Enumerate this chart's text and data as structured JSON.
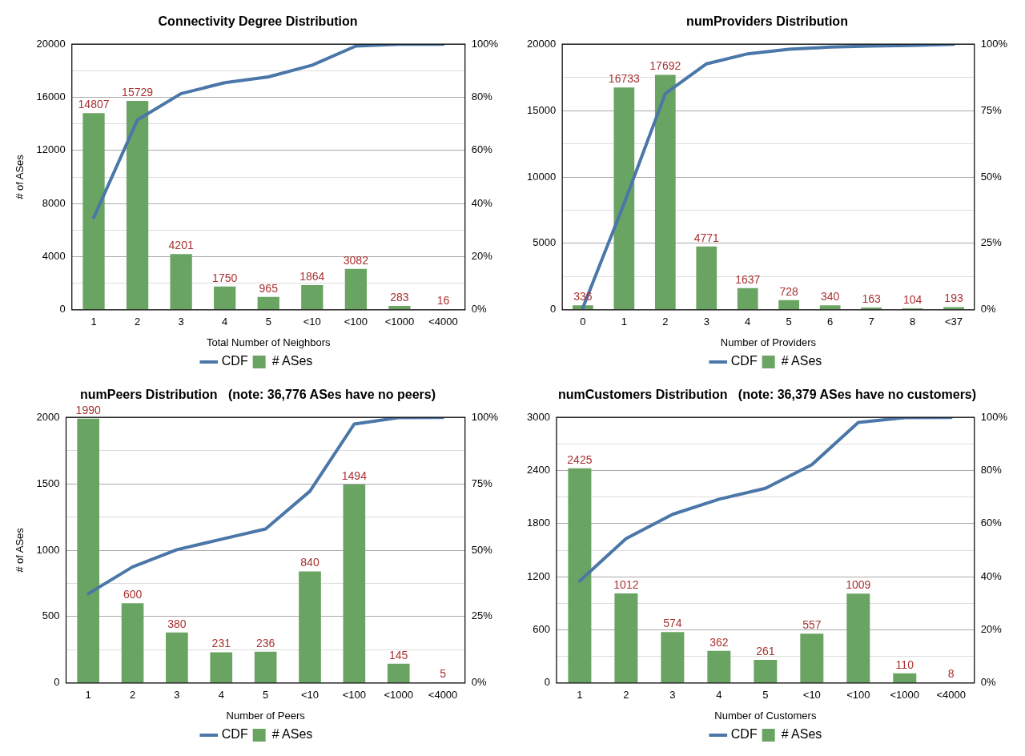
{
  "chart_data": [
    {
      "type": "bar",
      "title": "Connectivity Degree Distribution",
      "xlabel": "Total Number of Neighbors",
      "ylabel": "# of ASes",
      "categories": [
        "1",
        "2",
        "3",
        "4",
        "5",
        "<10",
        "<100",
        "<1000",
        "<4000"
      ],
      "ylim": [
        0,
        20000
      ],
      "yticks": [
        0,
        {
          "value": 2000,
          "label": null
        },
        4000,
        {
          "value": 6000,
          "label": null
        },
        8000,
        {
          "value": 10000,
          "label": null
        },
        12000,
        {
          "value": 14000,
          "label": null
        },
        16000,
        {
          "value": 18000,
          "label": null
        },
        20000
      ],
      "y2lim": [
        0,
        100
      ],
      "y2ticks": [
        {
          "value": 0,
          "label": "0%"
        },
        {
          "value": 20,
          "label": "20%"
        },
        {
          "value": 40,
          "label": "40%"
        },
        {
          "value": 60,
          "label": "60%"
        },
        {
          "value": 80,
          "label": "80%"
        },
        {
          "value": 100,
          "label": "100%"
        }
      ],
      "grid": "y",
      "legend": "bottom",
      "series": [
        {
          "name": "CDF",
          "type": "line",
          "axis": "y2",
          "color": "#4a77a8",
          "values": [
            34.7,
            71.5,
            81.4,
            85.5,
            87.7,
            92.1,
            99.3,
            100,
            100
          ]
        },
        {
          "name": "# ASes",
          "color": "#6aa463",
          "values": [
            14807,
            15729,
            4201,
            1750,
            965,
            1864,
            3082,
            283,
            16
          ],
          "value_labels": [
            "14807",
            "15729",
            "4201",
            "1750",
            "965",
            "1864",
            "3082",
            "283",
            "16"
          ]
        }
      ]
    },
    {
      "type": "bar",
      "title": "numProviders Distribution",
      "xlabel": "Number of Providers",
      "categories": [
        "0",
        "1",
        "2",
        "3",
        "4",
        "5",
        "6",
        "7",
        "8",
        "<37"
      ],
      "ylim": [
        0,
        20000
      ],
      "yticks": [
        0,
        {
          "value": 2500,
          "label": null
        },
        5000,
        {
          "value": 7500,
          "label": null
        },
        10000,
        {
          "value": 12500,
          "label": null
        },
        15000,
        {
          "value": 17500,
          "label": null
        },
        20000
      ],
      "y2lim": [
        0,
        100
      ],
      "y2ticks": [
        {
          "value": 0,
          "label": "0%"
        },
        {
          "value": 25,
          "label": "25%"
        },
        {
          "value": 50,
          "label": "50%"
        },
        {
          "value": 75,
          "label": "75%"
        },
        {
          "value": 100,
          "label": "100%"
        }
      ],
      "grid": "y",
      "legend": "bottom",
      "series": [
        {
          "name": "CDF",
          "type": "line",
          "axis": "y2",
          "color": "#4a77a8",
          "values": [
            0.8,
            40.0,
            81.4,
            92.6,
            96.4,
            98.1,
            98.9,
            99.3,
            99.5,
            100
          ]
        },
        {
          "name": "# ASes",
          "color": "#6aa463",
          "values": [
            336,
            16733,
            17692,
            4771,
            1637,
            728,
            340,
            163,
            104,
            193
          ],
          "value_labels": [
            "336",
            "16733",
            "17692",
            "4771",
            "1637",
            "728",
            "340",
            "163",
            "104",
            "193"
          ]
        }
      ]
    },
    {
      "type": "bar",
      "title": "numPeers Distribution   (note: 36,776 ASes have no peers)",
      "xlabel": "Number of Peers",
      "ylabel": "# of ASes",
      "categories": [
        "1",
        "2",
        "3",
        "4",
        "5",
        "<10",
        "<100",
        "<1000",
        "<4000"
      ],
      "ylim": [
        0,
        2000
      ],
      "yticks": [
        0,
        {
          "value": 250,
          "label": null
        },
        500,
        {
          "value": 750,
          "label": null
        },
        1000,
        {
          "value": 1250,
          "label": null
        },
        1500,
        {
          "value": 1750,
          "label": null
        },
        2000
      ],
      "y2lim": [
        0,
        100
      ],
      "y2ticks": [
        {
          "value": 0,
          "label": "0%"
        },
        {
          "value": 25,
          "label": "25%"
        },
        {
          "value": 50,
          "label": "50%"
        },
        {
          "value": 75,
          "label": "75%"
        },
        {
          "value": 100,
          "label": "100%"
        }
      ],
      "grid": "y",
      "legend": "bottom",
      "series": [
        {
          "name": "CDF",
          "type": "line",
          "axis": "y2",
          "color": "#4a77a8",
          "values": [
            33.6,
            43.7,
            50.2,
            54.1,
            58.0,
            72.2,
            97.5,
            99.9,
            100
          ]
        },
        {
          "name": "# ASes",
          "color": "#6aa463",
          "values": [
            1990,
            600,
            380,
            231,
            236,
            840,
            1494,
            145,
            5
          ],
          "value_labels": [
            "1990",
            "600",
            "380",
            "231",
            "236",
            "840",
            "1494",
            "145",
            "5"
          ]
        }
      ]
    },
    {
      "type": "bar",
      "title": "numCustomers Distribution   (note: 36,379 ASes have no customers)",
      "xlabel": "Number of Customers",
      "categories": [
        "1",
        "2",
        "3",
        "4",
        "5",
        "<10",
        "<100",
        "<1000",
        "<4000"
      ],
      "ylim": [
        0,
        3000
      ],
      "yticks": [
        0,
        {
          "value": 300,
          "label": null
        },
        600,
        {
          "value": 900,
          "label": null
        },
        1200,
        {
          "value": 1500,
          "label": null
        },
        1800,
        {
          "value": 2100,
          "label": null
        },
        2400,
        {
          "value": 2700,
          "label": null
        },
        3000
      ],
      "y2lim": [
        0,
        100
      ],
      "y2ticks": [
        {
          "value": 0,
          "label": "0%"
        },
        {
          "value": 20,
          "label": "20%"
        },
        {
          "value": 40,
          "label": "40%"
        },
        {
          "value": 60,
          "label": "60%"
        },
        {
          "value": 80,
          "label": "80%"
        },
        {
          "value": 100,
          "label": "100%"
        }
      ],
      "grid": "y",
      "legend": "bottom",
      "series": [
        {
          "name": "CDF",
          "type": "line",
          "axis": "y2",
          "color": "#4a77a8",
          "values": [
            38.4,
            54.4,
            63.5,
            69.2,
            73.3,
            82.2,
            98.1,
            99.9,
            100
          ]
        },
        {
          "name": "# ASes",
          "color": "#6aa463",
          "values": [
            2425,
            1012,
            574,
            362,
            261,
            557,
            1009,
            110,
            8
          ],
          "value_labels": [
            "2425",
            "1012",
            "574",
            "362",
            "261",
            "557",
            "1009",
            "110",
            "8"
          ]
        }
      ]
    }
  ]
}
